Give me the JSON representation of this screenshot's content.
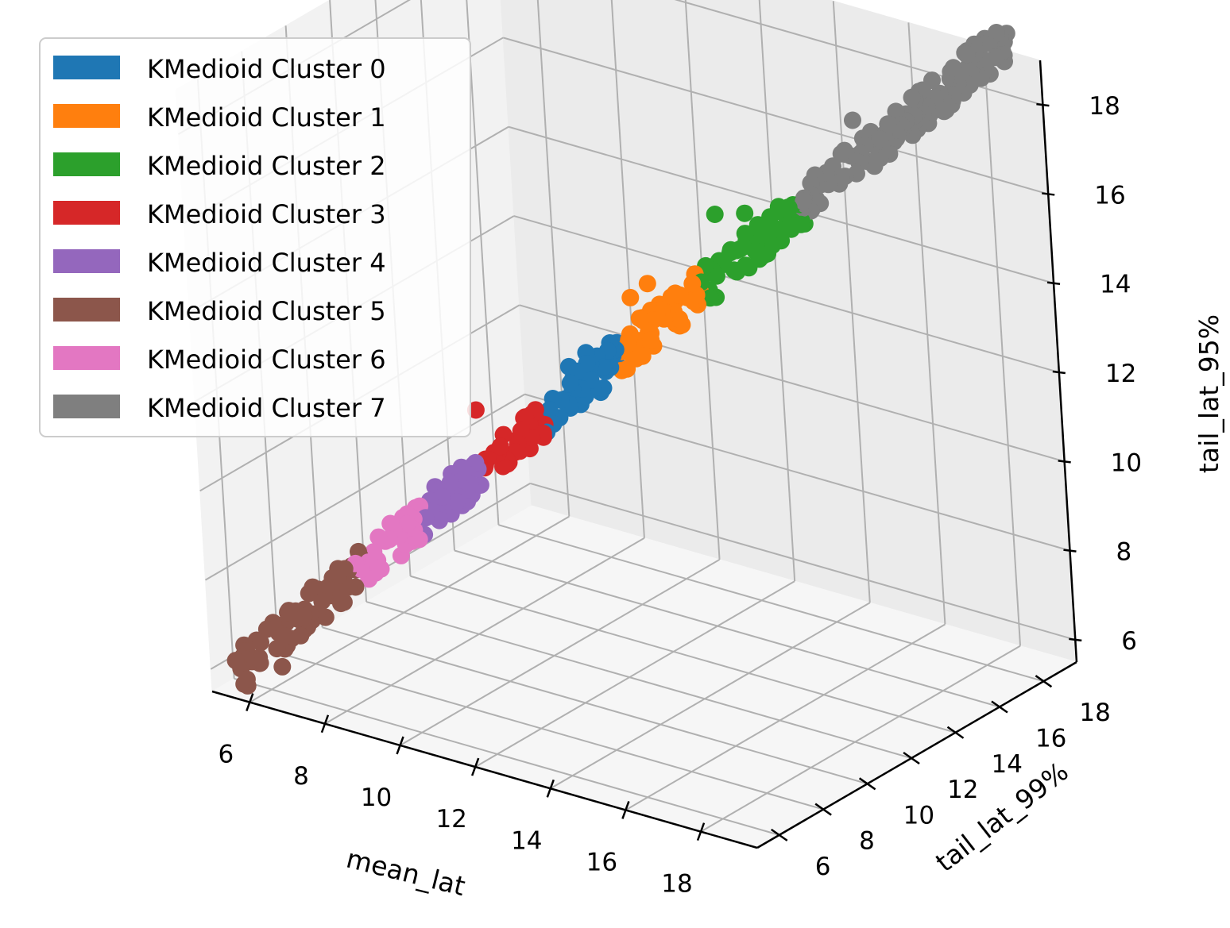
{
  "chart_data": {
    "type": "scatter",
    "projection": "3d",
    "grid": true,
    "legend": "top-left",
    "x": {
      "label": "mean_lat",
      "ticks": [
        "6",
        "8",
        "10",
        "12",
        "14",
        "16",
        "18"
      ],
      "range": [
        5,
        19.5
      ]
    },
    "y": {
      "label": "tail_lat_99%",
      "ticks": [
        "6",
        "8",
        "10",
        "12",
        "14",
        "16",
        "18"
      ],
      "range": [
        5,
        19.5
      ]
    },
    "z": {
      "label": "tail_lat_95%",
      "ticks": [
        "6",
        "8",
        "10",
        "12",
        "14",
        "16",
        "18"
      ],
      "range": [
        5.5,
        19
      ]
    },
    "series": [
      {
        "name": "KMedioid Cluster 0",
        "color": "#1f77b4",
        "x_range": [
          10.9,
          12.2
        ],
        "points": [
          [
            11.0,
            11.0,
            11.8
          ],
          [
            11.3,
            11.3,
            12.5
          ],
          [
            11.6,
            11.6,
            12.8
          ]
        ]
      },
      {
        "name": "KMedioid Cluster 1",
        "color": "#ff7f0e",
        "x_range": [
          12.2,
          13.6
        ],
        "points": [
          [
            12.4,
            12.4,
            14.0
          ],
          [
            12.7,
            12.7,
            14.3
          ],
          [
            13.0,
            13.0,
            13.6
          ]
        ]
      },
      {
        "name": "KMedioid Cluster 2",
        "color": "#2ca02c",
        "x_range": [
          13.6,
          15.4
        ],
        "points": [
          [
            13.9,
            13.9,
            15.8
          ],
          [
            14.4,
            14.4,
            15.8
          ],
          [
            15.1,
            15.1,
            15.7
          ]
        ]
      },
      {
        "name": "KMedioid Cluster 3",
        "color": "#d62728",
        "x_range": [
          9.7,
          10.9
        ],
        "points": [
          [
            9.7,
            9.7,
            11.6
          ],
          [
            10.2,
            10.2,
            10.4
          ]
        ]
      },
      {
        "name": "KMedioid Cluster 4",
        "color": "#9467bd",
        "x_range": [
          8.7,
          9.7
        ],
        "points": [
          [
            9.2,
            9.2,
            10.0
          ]
        ]
      },
      {
        "name": "KMedioid Cluster 5",
        "color": "#8c564b",
        "x_range": [
          5.5,
          7.6
        ],
        "points": [
          [
            5.6,
            5.6,
            5.6
          ],
          [
            6.2,
            6.2,
            6.0
          ]
        ]
      },
      {
        "name": "KMedioid Cluster 6",
        "color": "#e377c2",
        "x_range": [
          7.6,
          8.7
        ],
        "points": [
          [
            8.2,
            8.2,
            9.0
          ]
        ]
      },
      {
        "name": "KMedioid Cluster 7",
        "color": "#7f7f7f",
        "x_range": [
          15.4,
          19.0
        ],
        "points": [
          [
            18.9,
            18.9,
            19.0
          ],
          [
            18.3,
            18.3,
            18.5
          ],
          [
            16.3,
            16.3,
            17.8
          ],
          [
            17.2,
            17.2,
            17.9
          ]
        ]
      }
    ]
  }
}
